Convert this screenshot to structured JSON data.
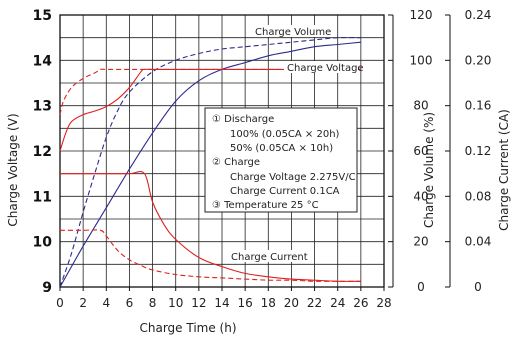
{
  "chart_data": {
    "type": "line",
    "xlabel": "Charge Time (h)",
    "ylabel_left": "Charge Voltage (V)",
    "ylabel_mid": "Charge Volume (%)",
    "ylabel_right": "Charge Current (CA)",
    "x_ticks": [
      "0",
      "2",
      "4",
      "6",
      "8",
      "10",
      "12",
      "14",
      "16",
      "18",
      "20",
      "22",
      "24",
      "26",
      "28"
    ],
    "y_left_ticks": [
      "9",
      "10",
      "11",
      "12",
      "13",
      "14",
      "15"
    ],
    "y_mid_ticks": [
      "0",
      "20",
      "40",
      "60",
      "80",
      "100",
      "120"
    ],
    "y_right_ticks": [
      "0",
      "0.04",
      "0.08",
      "0.12",
      "0.16",
      "0.20",
      "0.24"
    ],
    "xlim": [
      0,
      28
    ],
    "ylim_left": [
      9,
      15
    ],
    "ylim_mid": [
      0,
      120
    ],
    "ylim_right": [
      0,
      0.24
    ],
    "grid": true,
    "series": [
      {
        "name": "Charge Volume",
        "group": "volume",
        "style": "solid",
        "color": "#2b2b8f",
        "axis": "mid",
        "x": [
          0,
          2,
          4,
          6,
          8,
          10,
          12,
          14,
          16,
          18,
          20,
          22,
          24,
          26
        ],
        "y": [
          0,
          18,
          35,
          52,
          68,
          82,
          91,
          96,
          99,
          102,
          104,
          106,
          107,
          108
        ]
      },
      {
        "name": "Charge Volume",
        "group": "volume",
        "style": "dashed",
        "color": "#2b2b8f",
        "axis": "mid",
        "x": [
          0,
          1,
          2,
          3,
          4,
          5,
          6,
          8,
          10,
          12,
          14,
          16,
          18,
          20,
          22,
          24,
          26
        ],
        "y": [
          0,
          15,
          33,
          50,
          66,
          78,
          86,
          95,
          100,
          103,
          105,
          106,
          107,
          108,
          109,
          110,
          110
        ]
      },
      {
        "name": "Charge Voltage",
        "group": "voltage",
        "style": "solid",
        "color": "#e02020",
        "axis": "left",
        "x": [
          0,
          0.5,
          1,
          2,
          3,
          4,
          5,
          6,
          7,
          7.3,
          8,
          10,
          14,
          18,
          22,
          26
        ],
        "y": [
          12.0,
          12.4,
          12.65,
          12.8,
          12.88,
          12.98,
          13.15,
          13.4,
          13.75,
          13.8,
          13.8,
          13.8,
          13.8,
          13.8,
          13.8,
          13.8
        ]
      },
      {
        "name": "Charge Voltage",
        "group": "voltage",
        "style": "dashed",
        "color": "#e02020",
        "axis": "left",
        "x": [
          0,
          0.3,
          1,
          2,
          3,
          3.5,
          4,
          6,
          10,
          14,
          18,
          22,
          26
        ],
        "y": [
          12.8,
          13.1,
          13.4,
          13.6,
          13.72,
          13.8,
          13.8,
          13.8,
          13.8,
          13.8,
          13.8,
          13.8,
          13.8
        ]
      },
      {
        "name": "Charge Current",
        "group": "current",
        "style": "solid",
        "color": "#e02020",
        "axis": "right",
        "x": [
          0,
          2,
          4,
          6,
          7.3,
          8,
          9,
          10,
          12,
          14,
          16,
          18,
          20,
          22,
          24,
          26
        ],
        "y": [
          0.1,
          0.1,
          0.1,
          0.1,
          0.1,
          0.075,
          0.055,
          0.042,
          0.026,
          0.018,
          0.012,
          0.009,
          0.007,
          0.006,
          0.005,
          0.005
        ]
      },
      {
        "name": "Charge Current",
        "group": "current",
        "style": "dashed",
        "color": "#e02020",
        "axis": "right",
        "x": [
          0,
          2,
          3.5,
          4,
          5,
          6,
          7,
          8,
          10,
          12,
          14,
          16,
          18,
          20,
          22,
          24,
          26
        ],
        "y": [
          0.05,
          0.05,
          0.05,
          0.045,
          0.032,
          0.024,
          0.019,
          0.015,
          0.011,
          0.009,
          0.008,
          0.007,
          0.006,
          0.006,
          0.005,
          0.005,
          0.005
        ]
      }
    ],
    "series_labels": {
      "volume": "Charge Volume",
      "voltage": "Charge Voltage",
      "current": "Charge Current"
    },
    "annotations": [
      "① Discharge",
      "100% (0.05CA × 20h)",
      "50% (0.05CA × 10h)",
      "② Charge",
      "Charge Voltage 2.275V/C",
      "Charge Current 0.1CA",
      "③ Temperature 25 °C"
    ]
  }
}
